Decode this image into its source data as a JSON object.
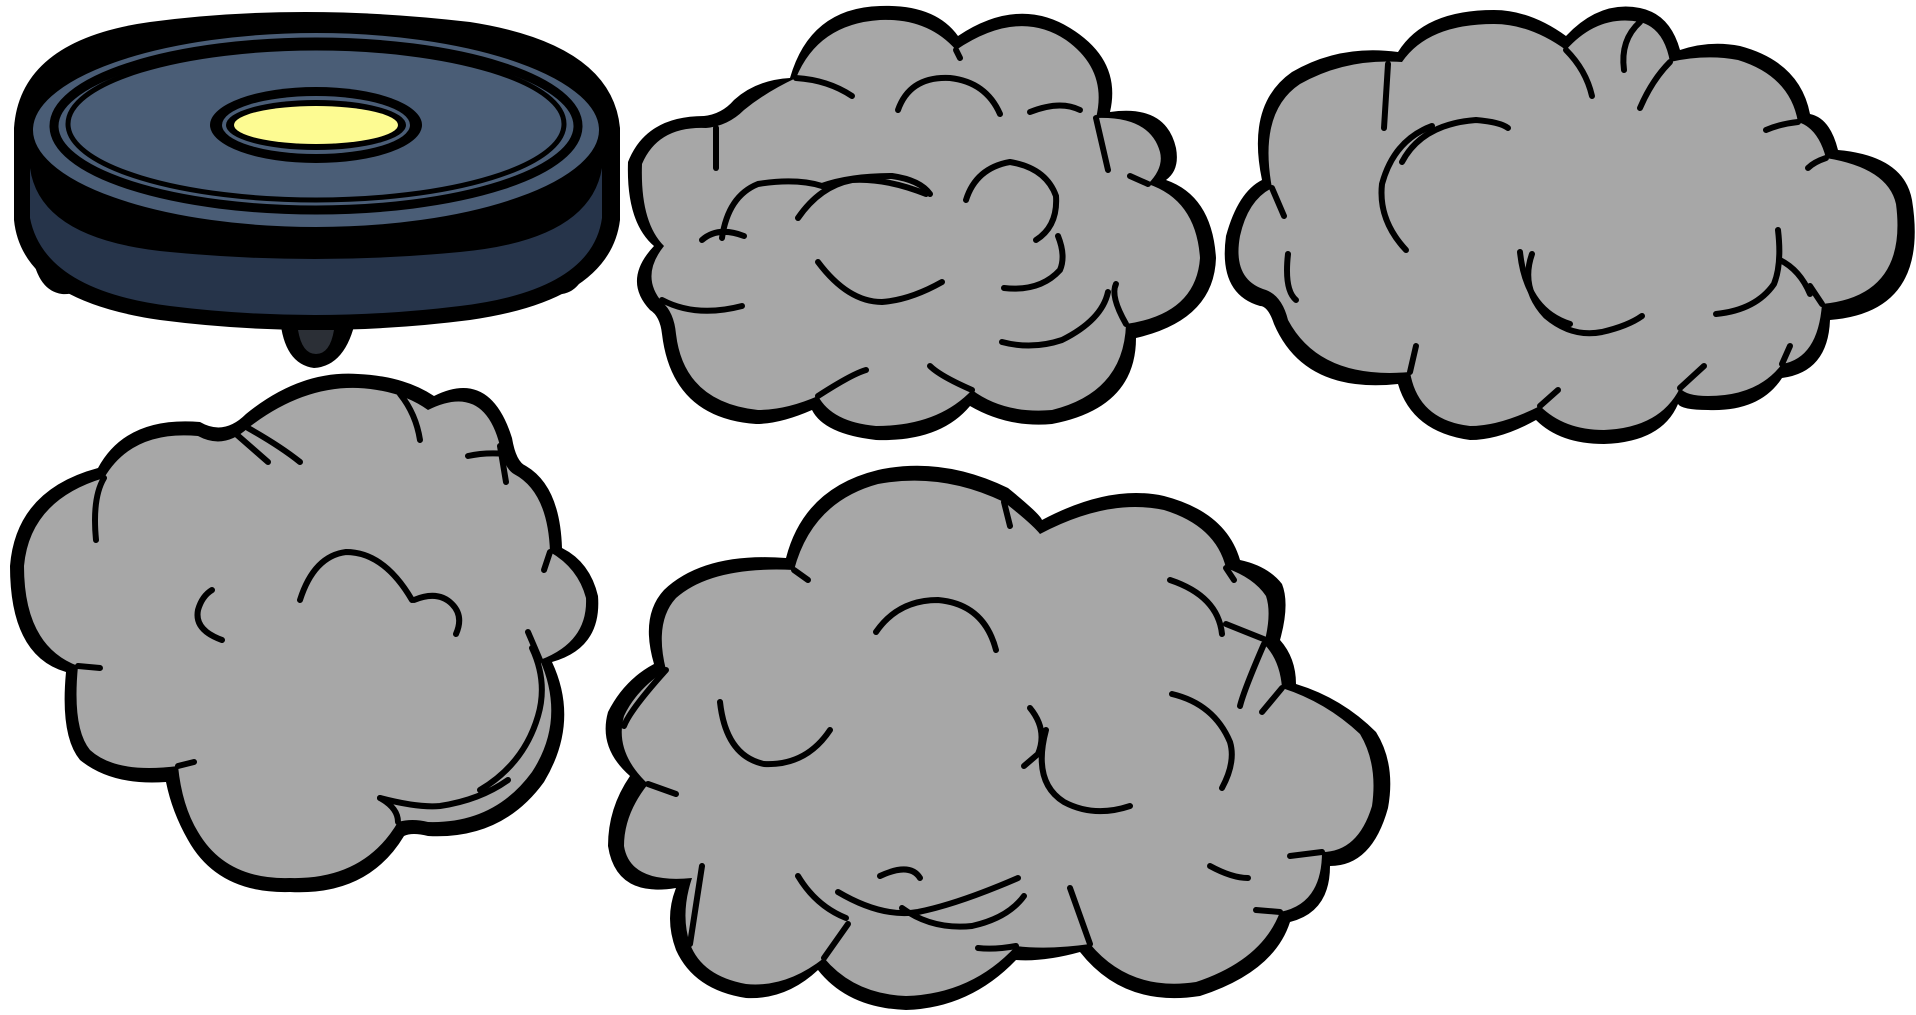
{
  "sprite_sheet": {
    "background": "#ffffff",
    "robot_vacuum": {
      "icon": "robot-vacuum-icon",
      "colors": {
        "top": "#4a5d76",
        "side": "#26344a",
        "foot": "#2b2f36",
        "light": "#fdfb92",
        "outline": "#000000"
      }
    },
    "clouds": [
      {
        "icon": "dust-cloud-icon",
        "color": "#a7a7a7"
      },
      {
        "icon": "dust-cloud-icon",
        "color": "#a7a7a7"
      },
      {
        "icon": "dust-cloud-icon",
        "color": "#a7a7a7"
      },
      {
        "icon": "dust-cloud-icon",
        "color": "#a7a7a7"
      }
    ]
  }
}
